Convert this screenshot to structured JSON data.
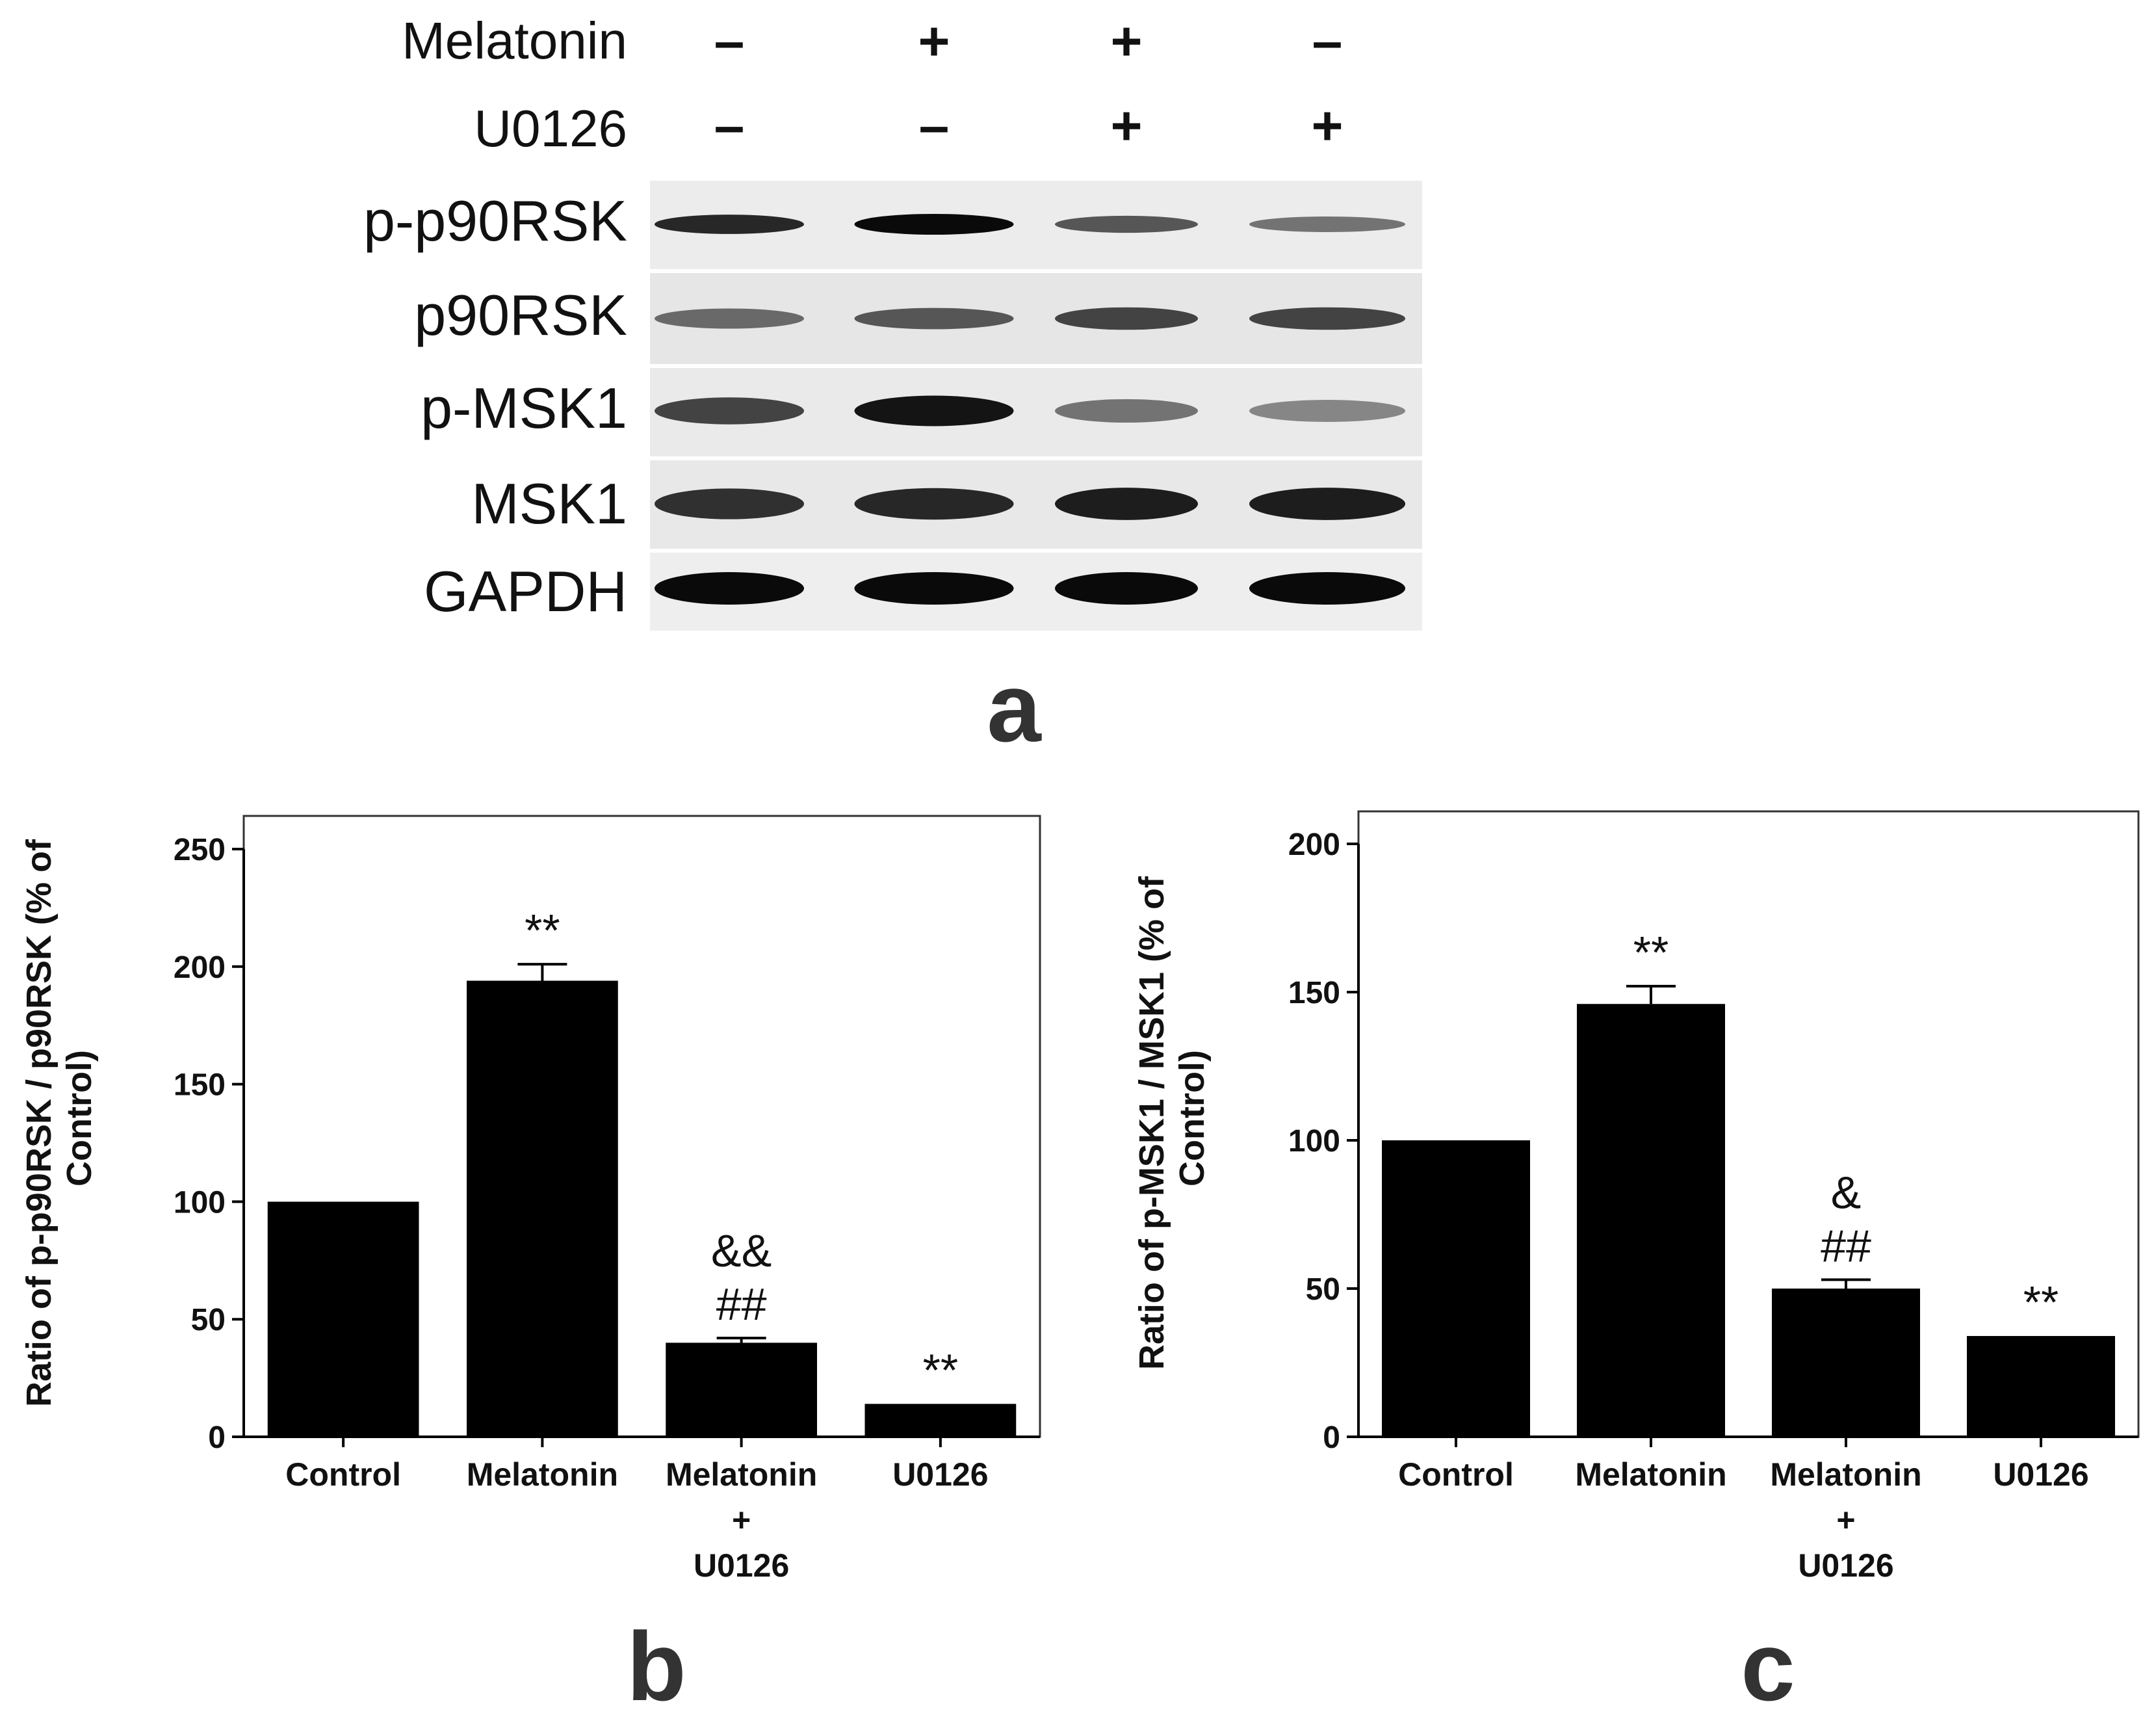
{
  "blot": {
    "conditions": [
      {
        "label": "Melatonin",
        "signs": [
          "–",
          "+",
          "+",
          "–"
        ]
      },
      {
        "label": "U0126",
        "signs": [
          "–",
          "–",
          "+",
          "+"
        ]
      }
    ],
    "bands": [
      {
        "label": "p-p90RSK",
        "intensity": [
          0.85,
          1.0,
          0.6,
          0.45
        ]
      },
      {
        "label": "p90RSK",
        "intensity": [
          0.5,
          0.6,
          0.7,
          0.7
        ]
      },
      {
        "label": "p-MSK1",
        "intensity": [
          0.7,
          0.95,
          0.45,
          0.35
        ]
      },
      {
        "label": "MSK1",
        "intensity": [
          0.8,
          0.85,
          0.9,
          0.9
        ]
      },
      {
        "label": "GAPDH",
        "intensity": [
          1.0,
          1.0,
          1.0,
          1.0
        ]
      }
    ],
    "panel_label": "a"
  },
  "chart_data": [
    {
      "type": "bar",
      "panel_label": "b",
      "categories": [
        [
          "Control"
        ],
        [
          "Melatonin"
        ],
        [
          "Melatonin",
          "+",
          "U0126"
        ],
        [
          "U0126"
        ]
      ],
      "values": [
        100,
        194,
        40,
        14
      ],
      "errors": [
        0,
        7,
        2,
        0
      ],
      "annotations": [
        [],
        [
          "**"
        ],
        [
          "&&",
          "##"
        ],
        [
          "**"
        ]
      ],
      "ylabel_lines": [
        "Ratio of p-p90RSK / p90RSK (% of",
        "Control)"
      ],
      "ylim": [
        0,
        250
      ],
      "yticks": [
        0,
        50,
        100,
        150,
        200,
        250
      ],
      "bar_color": "#000000"
    },
    {
      "type": "bar",
      "panel_label": "c",
      "categories": [
        [
          "Control"
        ],
        [
          "Melatonin"
        ],
        [
          "Melatonin",
          "+",
          "U0126"
        ],
        [
          "U0126"
        ]
      ],
      "values": [
        100,
        146,
        50,
        34
      ],
      "errors": [
        0,
        6,
        3,
        0
      ],
      "annotations": [
        [],
        [
          "**"
        ],
        [
          "&",
          "##"
        ],
        [
          "**"
        ]
      ],
      "ylabel_lines": [
        "Ratio of p-MSK1 / MSK1 (% of",
        "Control)"
      ],
      "ylim": [
        0,
        200
      ],
      "yticks": [
        0,
        50,
        100,
        150,
        200
      ],
      "bar_color": "#000000"
    }
  ]
}
